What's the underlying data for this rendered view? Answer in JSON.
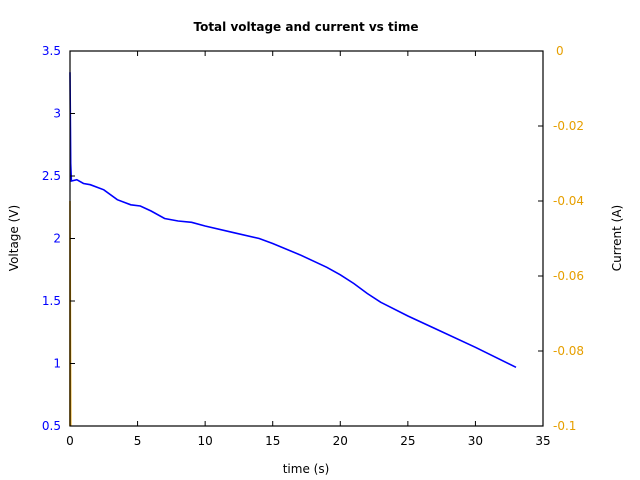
{
  "chart_data": {
    "type": "line",
    "title": "Total voltage and current vs time",
    "xlabel": "time (s)",
    "ylabel": "Voltage (V)",
    "y2label": "Current (A)",
    "xlim": [
      0,
      35
    ],
    "ylim": [
      0.5,
      3.5
    ],
    "y2lim": [
      -0.1,
      0
    ],
    "grid": false,
    "legend": "none",
    "x_ticks": [
      "0",
      "5",
      "10",
      "15",
      "20",
      "25",
      "30",
      "35"
    ],
    "y_ticks": [
      "0.5",
      "1",
      "1.5",
      "2",
      "2.5",
      "3",
      "3.5"
    ],
    "y2_ticks": [
      "-0.1",
      "-0.08",
      "-0.06",
      "-0.04",
      "-0.02",
      "0"
    ],
    "colors": {
      "voltage": "#0000ff",
      "current": "#e69f00",
      "axes": "#000000"
    },
    "series": [
      {
        "name": "Voltage",
        "axis": "left",
        "x": [
          0,
          0.05,
          0.1,
          0.5,
          1,
          1.5,
          2.5,
          3.5,
          4.5,
          5.2,
          6,
          7,
          8,
          9,
          10,
          12,
          14,
          15,
          17,
          19,
          20,
          21,
          22,
          23,
          25,
          27,
          30,
          33
        ],
        "values": [
          3.33,
          2.6,
          2.46,
          2.47,
          2.44,
          2.43,
          2.39,
          2.31,
          2.27,
          2.26,
          2.22,
          2.16,
          2.14,
          2.13,
          2.1,
          2.05,
          2.0,
          1.96,
          1.87,
          1.77,
          1.71,
          1.64,
          1.56,
          1.49,
          1.38,
          1.28,
          1.13,
          0.97
        ]
      },
      {
        "name": "Current",
        "axis": "right",
        "x": [
          0,
          0,
          0.05
        ],
        "values": [
          -0.1,
          -0.04,
          -0.1
        ]
      }
    ]
  }
}
